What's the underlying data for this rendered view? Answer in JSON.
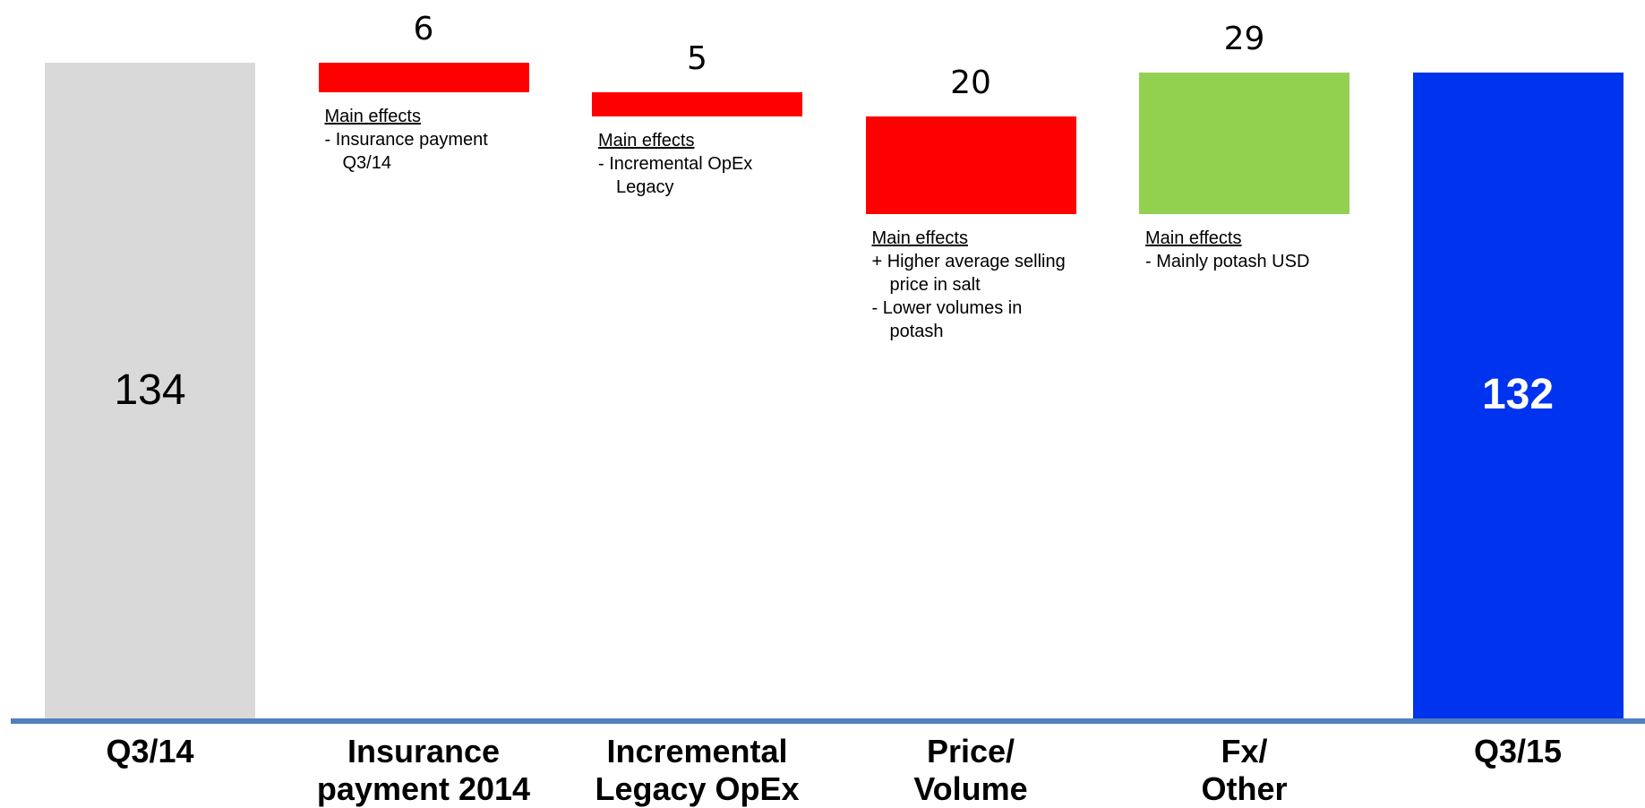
{
  "chart_data": {
    "type": "waterfall",
    "title": "",
    "xlabel": "",
    "ylabel": "",
    "categories": [
      [
        "Q3/14"
      ],
      [
        "Insurance",
        "payment 2014"
      ],
      [
        "Incremental",
        "Legacy OpEx"
      ],
      [
        "Price/",
        "Volume"
      ],
      [
        "Fx/",
        "Other"
      ],
      [
        "Q3/15"
      ]
    ],
    "steps": [
      {
        "kind": "total",
        "value": 134,
        "label": "134"
      },
      {
        "kind": "decrease",
        "value": -6,
        "label": "6"
      },
      {
        "kind": "decrease",
        "value": -5,
        "label": "5"
      },
      {
        "kind": "decrease",
        "value": -20,
        "label": "20"
      },
      {
        "kind": "increase",
        "value": 29,
        "label": "29"
      },
      {
        "kind": "total",
        "value": 132,
        "label": "132"
      }
    ],
    "colors": {
      "total_start": "#d9d9d9",
      "decrease": "#ff0000",
      "increase": "#92d050",
      "total_end": "#0033ee",
      "axis": "#4f81bd",
      "start_label": "#000000",
      "end_label": "#ffffff"
    },
    "annotations": [
      {
        "step": 1,
        "heading": "Main effects",
        "lines": [
          "-  Insurance payment Q3/14"
        ]
      },
      {
        "step": 2,
        "heading": "Main effects",
        "lines": [
          "-  Incremental OpEx Legacy"
        ]
      },
      {
        "step": 3,
        "heading": "Main effects",
        "lines": [
          "+ Higher average selling price in salt",
          "-  Lower volumes in potash"
        ]
      },
      {
        "step": 4,
        "heading": "Main effects",
        "lines": [
          "-  Mainly potash USD"
        ]
      }
    ]
  }
}
